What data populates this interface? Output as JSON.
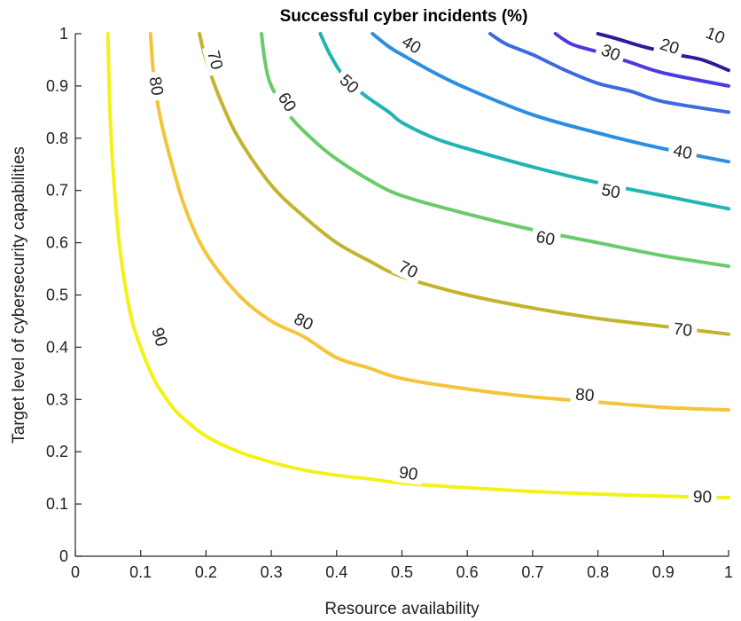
{
  "chart_data": {
    "type": "contour",
    "title": "Successful cyber incidents (%)",
    "xlabel": "Resource availability",
    "ylabel": "Target level of cybersecurity capabilities",
    "xlim": [
      0,
      1
    ],
    "ylim": [
      0,
      1
    ],
    "xticks": [
      "0",
      "0.1",
      "0.2",
      "0.3",
      "0.4",
      "0.5",
      "0.6",
      "0.7",
      "0.8",
      "0.9",
      "1"
    ],
    "yticks": [
      "0",
      "0.1",
      "0.2",
      "0.3",
      "0.4",
      "0.5",
      "0.6",
      "0.7",
      "0.8",
      "0.9",
      "1"
    ],
    "grid": false,
    "levels": [
      {
        "level": 90,
        "label": "90",
        "color": "#f2f21a",
        "points": [
          [
            0.05,
            1.0
          ],
          [
            0.053,
            0.85
          ],
          [
            0.06,
            0.7
          ],
          [
            0.07,
            0.57
          ],
          [
            0.085,
            0.46
          ],
          [
            0.1,
            0.4
          ],
          [
            0.12,
            0.34
          ],
          [
            0.14,
            0.3
          ],
          [
            0.16,
            0.27
          ],
          [
            0.2,
            0.23
          ],
          [
            0.25,
            0.2
          ],
          [
            0.3,
            0.18
          ],
          [
            0.35,
            0.165
          ],
          [
            0.4,
            0.155
          ],
          [
            0.45,
            0.148
          ],
          [
            0.5,
            0.14
          ],
          [
            0.6,
            0.131
          ],
          [
            0.7,
            0.124
          ],
          [
            0.8,
            0.119
          ],
          [
            0.9,
            0.115
          ],
          [
            1.0,
            0.112
          ]
        ],
        "labels_at": [
          [
            0.13,
            0.42
          ],
          [
            0.51,
            0.16
          ],
          [
            0.96,
            0.115
          ]
        ]
      },
      {
        "level": 80,
        "label": "80",
        "color": "#f5c43a",
        "points": [
          [
            0.115,
            1.0
          ],
          [
            0.12,
            0.92
          ],
          [
            0.13,
            0.84
          ],
          [
            0.15,
            0.74
          ],
          [
            0.17,
            0.66
          ],
          [
            0.2,
            0.58
          ],
          [
            0.25,
            0.5
          ],
          [
            0.3,
            0.45
          ],
          [
            0.35,
            0.42
          ],
          [
            0.4,
            0.38
          ],
          [
            0.45,
            0.36
          ],
          [
            0.5,
            0.34
          ],
          [
            0.6,
            0.32
          ],
          [
            0.7,
            0.305
          ],
          [
            0.8,
            0.295
          ],
          [
            0.9,
            0.285
          ],
          [
            1.0,
            0.28
          ]
        ],
        "labels_at": [
          [
            0.125,
            0.9
          ],
          [
            0.35,
            0.45
          ],
          [
            0.78,
            0.31
          ]
        ]
      },
      {
        "level": 70,
        "label": "70",
        "color": "#c3b42e",
        "points": [
          [
            0.19,
            1.0
          ],
          [
            0.2,
            0.95
          ],
          [
            0.22,
            0.88
          ],
          [
            0.25,
            0.8
          ],
          [
            0.3,
            0.71
          ],
          [
            0.35,
            0.65
          ],
          [
            0.4,
            0.6
          ],
          [
            0.45,
            0.565
          ],
          [
            0.5,
            0.535
          ],
          [
            0.6,
            0.5
          ],
          [
            0.7,
            0.475
          ],
          [
            0.8,
            0.455
          ],
          [
            0.9,
            0.44
          ],
          [
            1.0,
            0.425
          ]
        ],
        "labels_at": [
          [
            0.215,
            0.95
          ],
          [
            0.51,
            0.55
          ],
          [
            0.93,
            0.435
          ]
        ]
      },
      {
        "level": 60,
        "label": "60",
        "color": "#6acb6a",
        "points": [
          [
            0.285,
            1.0
          ],
          [
            0.29,
            0.95
          ],
          [
            0.3,
            0.9
          ],
          [
            0.33,
            0.84
          ],
          [
            0.37,
            0.79
          ],
          [
            0.4,
            0.76
          ],
          [
            0.45,
            0.72
          ],
          [
            0.5,
            0.69
          ],
          [
            0.6,
            0.655
          ],
          [
            0.7,
            0.625
          ],
          [
            0.8,
            0.6
          ],
          [
            0.9,
            0.575
          ],
          [
            1.0,
            0.555
          ]
        ],
        "labels_at": [
          [
            0.325,
            0.87
          ],
          [
            0.72,
            0.61
          ]
        ]
      },
      {
        "level": 50,
        "label": "50",
        "color": "#22b3b3",
        "points": [
          [
            0.375,
            1.0
          ],
          [
            0.39,
            0.96
          ],
          [
            0.41,
            0.92
          ],
          [
            0.44,
            0.885
          ],
          [
            0.48,
            0.85
          ],
          [
            0.5,
            0.83
          ],
          [
            0.55,
            0.8
          ],
          [
            0.6,
            0.78
          ],
          [
            0.7,
            0.745
          ],
          [
            0.8,
            0.715
          ],
          [
            0.9,
            0.69
          ],
          [
            1.0,
            0.665
          ]
        ],
        "labels_at": [
          [
            0.42,
            0.905
          ],
          [
            0.82,
            0.7
          ]
        ]
      },
      {
        "level": 40,
        "label": "40",
        "color": "#2a8fe0",
        "points": [
          [
            0.455,
            1.0
          ],
          [
            0.48,
            0.975
          ],
          [
            0.5,
            0.96
          ],
          [
            0.55,
            0.925
          ],
          [
            0.6,
            0.895
          ],
          [
            0.7,
            0.845
          ],
          [
            0.8,
            0.81
          ],
          [
            0.9,
            0.78
          ],
          [
            1.0,
            0.755
          ]
        ],
        "labels_at": [
          [
            0.515,
            0.98
          ],
          [
            0.93,
            0.775
          ]
        ]
      },
      {
        "level": 30,
        "label": "30",
        "color": "#3c6ae0",
        "points": [
          [
            0.635,
            1.0
          ],
          [
            0.66,
            0.98
          ],
          [
            0.7,
            0.96
          ],
          [
            0.75,
            0.93
          ],
          [
            0.8,
            0.905
          ],
          [
            0.85,
            0.89
          ],
          [
            0.9,
            0.87
          ],
          [
            1.0,
            0.85
          ]
        ],
        "labels_at": [
          [
            0.82,
            0.965
          ]
        ]
      },
      {
        "level": 20,
        "label": "20",
        "color": "#4a3be0",
        "points": [
          [
            0.735,
            1.0
          ],
          [
            0.76,
            0.98
          ],
          [
            0.8,
            0.965
          ],
          [
            0.85,
            0.945
          ],
          [
            0.9,
            0.925
          ],
          [
            1.0,
            0.9
          ]
        ],
        "labels_at": [
          [
            0.91,
            0.977
          ]
        ]
      },
      {
        "level": 10,
        "label": "10",
        "color": "#2c1a9a",
        "points": [
          [
            0.8,
            1.0
          ],
          [
            0.83,
            0.99
          ],
          [
            0.87,
            0.975
          ],
          [
            0.92,
            0.96
          ],
          [
            0.96,
            0.95
          ],
          [
            1.0,
            0.93
          ]
        ],
        "labels_at": [
          [
            0.98,
            0.998
          ]
        ]
      }
    ]
  }
}
